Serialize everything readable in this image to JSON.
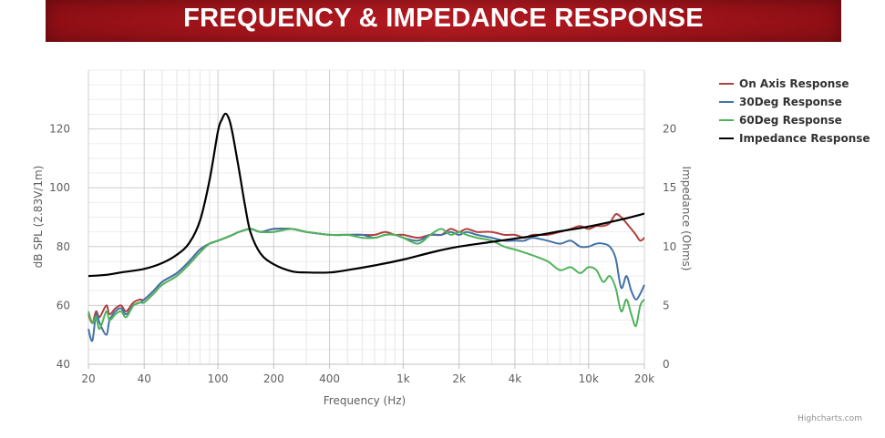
{
  "banner": {
    "title": "FREQUENCY & IMPEDANCE RESPONSE"
  },
  "credit": "Highcharts.com",
  "chart_data": {
    "type": "line",
    "title": "FREQUENCY & IMPEDANCE RESPONSE",
    "xlabel": "Frequency (Hz)",
    "ylabel": "dB SPL (2.83V/1m)",
    "y2label": "Impedance (Ohms)",
    "x_scale": "log",
    "xlim": [
      20,
      20000
    ],
    "ylim": [
      40,
      140
    ],
    "y2lim": [
      0,
      25
    ],
    "x_ticks": [
      20,
      40,
      100,
      200,
      400,
      1000,
      2000,
      4000,
      10000,
      20000
    ],
    "x_tick_labels": [
      "20",
      "40",
      "100",
      "200",
      "400",
      "1k",
      "2k",
      "4k",
      "10k",
      "20k"
    ],
    "y_ticks": [
      40,
      60,
      80,
      100,
      120
    ],
    "y_tick_labels": [
      "40",
      "60",
      "80",
      "100",
      "120"
    ],
    "y2_ticks": [
      0,
      5,
      10,
      15,
      20
    ],
    "y2_tick_labels": [
      "0",
      "5",
      "10",
      "15",
      "20"
    ],
    "grid": true,
    "legend_position": "top-right",
    "series": [
      {
        "name": "On Axis Response",
        "color": "#b0403f",
        "axis": "left",
        "x": [
          20,
          21,
          22,
          23,
          25,
          26,
          28,
          30,
          32,
          35,
          38,
          40,
          45,
          50,
          60,
          70,
          80,
          90,
          100,
          120,
          130,
          150,
          170,
          200,
          250,
          300,
          400,
          500,
          600,
          700,
          800,
          900,
          1000,
          1200,
          1400,
          1600,
          1800,
          2000,
          2200,
          2500,
          3000,
          3500,
          4000,
          4500,
          5000,
          6000,
          7000,
          8000,
          9000,
          10000,
          11000,
          12000,
          13000,
          14000,
          15000,
          16000,
          17000,
          18000,
          19000,
          20000
        ],
        "y": [
          57,
          54,
          58,
          56,
          60,
          57,
          59,
          60,
          58,
          61,
          62,
          62,
          65,
          68,
          71,
          75,
          79,
          81,
          82,
          84,
          85,
          86,
          85,
          86,
          86,
          85,
          84,
          84,
          84,
          84,
          85,
          84,
          84,
          83,
          84,
          84,
          86,
          85,
          86,
          85,
          85,
          84,
          84,
          83,
          84,
          84,
          85,
          86,
          87,
          86,
          87,
          87,
          88,
          91,
          90,
          88,
          86,
          84,
          82,
          83
        ]
      },
      {
        "name": "30Deg Response",
        "color": "#4572a7",
        "axis": "left",
        "x": [
          20,
          21,
          22,
          23,
          25,
          26,
          28,
          30,
          32,
          35,
          38,
          40,
          45,
          50,
          60,
          70,
          80,
          90,
          100,
          120,
          130,
          150,
          170,
          200,
          250,
          300,
          400,
          500,
          600,
          700,
          800,
          900,
          1000,
          1200,
          1400,
          1600,
          1800,
          2000,
          2200,
          2500,
          3000,
          3500,
          4000,
          4500,
          5000,
          6000,
          7000,
          8000,
          9000,
          10000,
          11000,
          12000,
          13000,
          14000,
          15000,
          16000,
          17000,
          18000,
          19000,
          20000
        ],
        "y": [
          52,
          48,
          57,
          54,
          50,
          55,
          58,
          59,
          57,
          60,
          61,
          62,
          65,
          68,
          71,
          75,
          79,
          81,
          82,
          84,
          85,
          86,
          85,
          86,
          86,
          85,
          84,
          84,
          84,
          83,
          84,
          84,
          83,
          82,
          84,
          84,
          85,
          84,
          85,
          84,
          83,
          82,
          82,
          82,
          83,
          82,
          81,
          82,
          80,
          80,
          81,
          81,
          80,
          76,
          66,
          70,
          65,
          62,
          64,
          67
        ]
      },
      {
        "name": "60Deg Response",
        "color": "#4fb35a",
        "axis": "left",
        "x": [
          20,
          21,
          22,
          23,
          25,
          26,
          28,
          30,
          32,
          35,
          38,
          40,
          45,
          50,
          60,
          70,
          80,
          90,
          100,
          120,
          130,
          150,
          170,
          200,
          250,
          300,
          400,
          500,
          600,
          700,
          800,
          900,
          1000,
          1200,
          1400,
          1600,
          1800,
          2000,
          2200,
          2500,
          3000,
          3500,
          4000,
          4500,
          5000,
          6000,
          7000,
          8000,
          9000,
          10000,
          11000,
          12000,
          13000,
          14000,
          15000,
          16000,
          17000,
          18000,
          19000,
          20000
        ],
        "y": [
          58,
          54,
          56,
          52,
          58,
          55,
          57,
          58,
          56,
          60,
          61,
          61,
          64,
          67,
          70,
          74,
          78,
          81,
          82,
          84,
          85,
          86,
          85,
          85,
          86,
          85,
          84,
          84,
          83,
          83,
          84,
          84,
          83,
          81,
          84,
          86,
          84,
          85,
          84,
          83,
          82,
          80,
          79,
          78,
          77,
          75,
          72,
          73,
          71,
          73,
          72,
          68,
          70,
          66,
          58,
          62,
          57,
          53,
          60,
          62
        ]
      },
      {
        "name": "Impedance Response",
        "color": "#000000",
        "axis": "right",
        "x": [
          20,
          25,
          30,
          40,
          50,
          60,
          70,
          80,
          90,
          100,
          105,
          110,
          115,
          120,
          130,
          140,
          150,
          170,
          200,
          250,
          300,
          400,
          500,
          700,
          1000,
          1500,
          2000,
          3000,
          5000,
          7000,
          10000,
          15000,
          20000
        ],
        "y": [
          7.5,
          7.6,
          7.8,
          8.1,
          8.6,
          9.3,
          10.3,
          12.2,
          15.6,
          19.8,
          20.8,
          21.3,
          20.8,
          19.6,
          16.5,
          13.5,
          11.2,
          9.4,
          8.5,
          7.9,
          7.8,
          7.8,
          8.0,
          8.4,
          8.9,
          9.6,
          10.0,
          10.4,
          10.9,
          11.3,
          11.7,
          12.3,
          12.8
        ]
      }
    ]
  }
}
